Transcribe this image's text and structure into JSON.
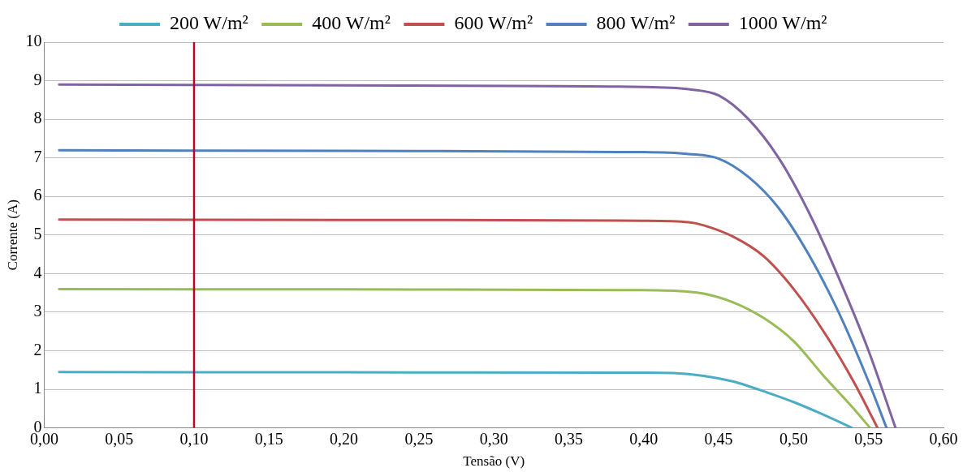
{
  "chart_data": {
    "type": "line",
    "xlabel": "Tensão (V)",
    "ylabel": "Corrente (A)",
    "legend": "top",
    "grid": "y",
    "marker": "none",
    "line_style": "solid",
    "xlim": [
      0,
      0.6
    ],
    "xticks": [
      {
        "value": 0,
        "label": "0,00"
      },
      {
        "value": 0.05,
        "label": "0,05"
      },
      {
        "value": 0.1,
        "label": "0,10"
      },
      {
        "value": 0.15,
        "label": "0,15"
      },
      {
        "value": 0.2,
        "label": "0,20"
      },
      {
        "value": 0.25,
        "label": "0,25"
      },
      {
        "value": 0.3,
        "label": "0,30"
      },
      {
        "value": 0.35,
        "label": "0,35"
      },
      {
        "value": 0.4,
        "label": "0,40"
      },
      {
        "value": 0.45,
        "label": "0,45"
      },
      {
        "value": 0.5,
        "label": "0,50"
      },
      {
        "value": 0.55,
        "label": "0,55"
      },
      {
        "value": 0.6,
        "label": "0,60"
      }
    ],
    "ylim": [
      0,
      10
    ],
    "yticks": [
      0,
      1,
      2,
      3,
      4,
      5,
      6,
      7,
      8,
      9,
      10
    ],
    "ref_lines": [
      {
        "axis": "x",
        "value": 0.1,
        "color": "#c00020"
      }
    ],
    "series": [
      {
        "name": "200 W/m²",
        "color": "#4bacc6",
        "x": [
          0.01,
          0.2,
          0.4,
          0.42,
          0.44,
          0.46,
          0.47,
          0.48,
          0.5,
          0.52,
          0.539
        ],
        "values": [
          1.45,
          1.44,
          1.43,
          1.42,
          1.35,
          1.2,
          1.08,
          0.95,
          0.67,
          0.34,
          0
        ]
      },
      {
        "name": "400 W/m²",
        "color": "#9bbb59",
        "x": [
          0.01,
          0.2,
          0.4,
          0.43,
          0.44,
          0.46,
          0.48,
          0.5,
          0.52,
          0.54,
          0.551
        ],
        "values": [
          3.6,
          3.59,
          3.57,
          3.53,
          3.48,
          3.25,
          2.85,
          2.25,
          1.35,
          0.5,
          0
        ]
      },
      {
        "name": "600 W/m²",
        "color": "#c0504d",
        "x": [
          0.01,
          0.2,
          0.4,
          0.43,
          0.44,
          0.46,
          0.48,
          0.5,
          0.52,
          0.54,
          0.556
        ],
        "values": [
          5.4,
          5.39,
          5.37,
          5.33,
          5.25,
          4.95,
          4.45,
          3.6,
          2.5,
          1.2,
          0
        ]
      },
      {
        "name": "800 W/m²",
        "color": "#4f81bd",
        "x": [
          0.01,
          0.2,
          0.4,
          0.43,
          0.45,
          0.47,
          0.49,
          0.51,
          0.53,
          0.55,
          0.562
        ],
        "values": [
          7.2,
          7.18,
          7.15,
          7.1,
          6.98,
          6.5,
          5.7,
          4.5,
          3.0,
          1.2,
          0
        ]
      },
      {
        "name": "1000 W/m²",
        "color": "#8064a2",
        "x": [
          0.01,
          0.2,
          0.4,
          0.43,
          0.45,
          0.47,
          0.49,
          0.51,
          0.53,
          0.55,
          0.568
        ],
        "values": [
          8.9,
          8.88,
          8.84,
          8.78,
          8.62,
          8.0,
          7.0,
          5.6,
          3.9,
          2.0,
          0
        ]
      }
    ]
  }
}
